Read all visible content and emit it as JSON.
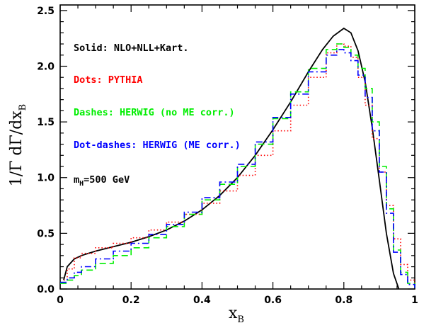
{
  "chart_data": {
    "type": "line",
    "xlabel": "x",
    "xlabel_sub": "B",
    "ylabel": "1/Γ dΓ/dx",
    "ylabel_sub": "B",
    "xlim": [
      0,
      1
    ],
    "ylim": [
      0,
      2.55
    ],
    "x_ticks": [
      0,
      0.2,
      0.4,
      0.6,
      0.8,
      1
    ],
    "x_tick_labels": [
      "0",
      "0.2",
      "0.4",
      "0.6",
      "0.8",
      "1"
    ],
    "y_ticks": [
      0,
      0.5,
      1.0,
      1.5,
      2.0,
      2.5
    ],
    "y_tick_labels": [
      "0.0",
      "0.5",
      "1.0",
      "1.5",
      "2.0",
      "2.5"
    ],
    "grid": false,
    "legend_position": "top-left inside",
    "annotations": [
      {
        "text": "Solid: NLO+NLL+Kart.",
        "color": "#000000"
      },
      {
        "text": "Dots: PYTHIA",
        "color": "#ff0000"
      },
      {
        "text": "Dashes: HERWIG (no ME corr.)",
        "color": "#00ee00"
      },
      {
        "text": "Dot-dashes: HERWIG (ME corr.)",
        "color": "#0000ff"
      },
      {
        "text_main": "m",
        "text_sub": "H",
        "text_rest": "=500 GeV",
        "color": "#000000"
      }
    ],
    "series": [
      {
        "name": "NLO+NLL+Kart.",
        "style": "solid",
        "color": "#000000",
        "x": [
          0.01,
          0.02,
          0.04,
          0.06,
          0.1,
          0.15,
          0.2,
          0.25,
          0.3,
          0.35,
          0.4,
          0.45,
          0.5,
          0.55,
          0.6,
          0.65,
          0.7,
          0.74,
          0.77,
          0.8,
          0.82,
          0.84,
          0.86,
          0.88,
          0.9,
          0.92,
          0.94,
          0.955
        ],
        "y": [
          0.08,
          0.2,
          0.27,
          0.3,
          0.34,
          0.38,
          0.42,
          0.47,
          0.53,
          0.61,
          0.71,
          0.84,
          1.0,
          1.2,
          1.43,
          1.68,
          1.95,
          2.15,
          2.27,
          2.34,
          2.3,
          2.14,
          1.86,
          1.45,
          0.98,
          0.5,
          0.14,
          0.0
        ]
      },
      {
        "name": "PYTHIA",
        "style": "dotted",
        "color": "#ff0000",
        "x": [
          0.01,
          0.02,
          0.04,
          0.06,
          0.1,
          0.15,
          0.2,
          0.25,
          0.3,
          0.35,
          0.4,
          0.45,
          0.5,
          0.55,
          0.6,
          0.65,
          0.7,
          0.75,
          0.78,
          0.8,
          0.82,
          0.84,
          0.86,
          0.88,
          0.9,
          0.92,
          0.94,
          0.96,
          0.98,
          1.0
        ],
        "y": [
          0.08,
          0.18,
          0.28,
          0.32,
          0.37,
          0.41,
          0.46,
          0.53,
          0.6,
          0.67,
          0.77,
          0.88,
          1.02,
          1.2,
          1.42,
          1.65,
          1.9,
          2.12,
          2.2,
          2.18,
          2.08,
          1.9,
          1.65,
          1.35,
          1.05,
          0.75,
          0.45,
          0.22,
          0.08,
          0.02
        ]
      },
      {
        "name": "HERWIG (no ME corr.)",
        "style": "dashed",
        "color": "#00ee00",
        "x": [
          0.0,
          0.02,
          0.04,
          0.06,
          0.1,
          0.15,
          0.2,
          0.25,
          0.3,
          0.35,
          0.4,
          0.45,
          0.5,
          0.55,
          0.6,
          0.65,
          0.7,
          0.75,
          0.78,
          0.8,
          0.82,
          0.84,
          0.86,
          0.88,
          0.9,
          0.92,
          0.94,
          0.96,
          0.98,
          1.0
        ],
        "y": [
          0.05,
          0.08,
          0.12,
          0.17,
          0.23,
          0.3,
          0.37,
          0.46,
          0.56,
          0.67,
          0.8,
          0.94,
          1.1,
          1.3,
          1.53,
          1.77,
          1.98,
          2.15,
          2.2,
          2.17,
          2.1,
          1.98,
          1.8,
          1.5,
          1.1,
          0.72,
          0.35,
          0.15,
          0.05,
          0.01
        ]
      },
      {
        "name": "HERWIG (ME corr.)",
        "style": "dashdot",
        "color": "#0000ff",
        "x": [
          0.0,
          0.02,
          0.04,
          0.06,
          0.1,
          0.15,
          0.2,
          0.25,
          0.3,
          0.35,
          0.4,
          0.45,
          0.5,
          0.55,
          0.6,
          0.65,
          0.7,
          0.75,
          0.78,
          0.8,
          0.82,
          0.84,
          0.86,
          0.88,
          0.9,
          0.92,
          0.94,
          0.96,
          0.98,
          1.0
        ],
        "y": [
          0.06,
          0.1,
          0.15,
          0.2,
          0.27,
          0.34,
          0.41,
          0.49,
          0.58,
          0.69,
          0.82,
          0.96,
          1.12,
          1.32,
          1.54,
          1.75,
          1.95,
          2.1,
          2.15,
          2.12,
          2.05,
          1.92,
          1.72,
          1.42,
          1.05,
          0.68,
          0.33,
          0.13,
          0.04,
          0.01
        ]
      }
    ]
  }
}
